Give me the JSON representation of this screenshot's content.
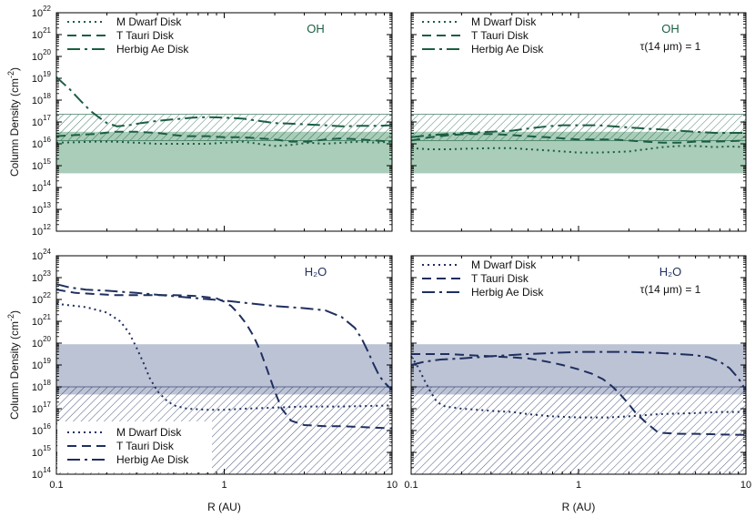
{
  "colors": {
    "oh": "#1b5e43",
    "oh_band": "#a9cdb8",
    "h2o": "#1f2f5f",
    "h2o_band": "#bcc3d5"
  },
  "chart_data": [
    {
      "type": "line",
      "panel": "top-left",
      "species": "OH",
      "note": "",
      "ylabel": "Column Density (cm",
      "ylabel_sup": "-2",
      "ylabel_close": ")",
      "xlabel": "",
      "xscale": "log",
      "yscale": "log",
      "xlim": [
        0.1,
        10
      ],
      "ylim": [
        12,
        22
      ],
      "x_ticks": [],
      "y_ticks": [
        12,
        13,
        14,
        15,
        16,
        17,
        18,
        19,
        20,
        21,
        22
      ],
      "legend_position": "top-left",
      "shaded_band": [
        14.65,
        16.55
      ],
      "hatched_band": [
        16.15,
        17.35
      ],
      "series": [
        {
          "name": "M Dwarf Disk",
          "style": "dot",
          "x": [
            0.1,
            0.13,
            0.17,
            0.22,
            0.3,
            0.4,
            0.5,
            0.6,
            0.8,
            1.0,
            1.3,
            1.6,
            2.0,
            2.5,
            3.2,
            4.0,
            5.0,
            6.5,
            8.0,
            10
          ],
          "y": [
            16.05,
            16.07,
            16.1,
            16.1,
            16.05,
            16.0,
            16.0,
            16.0,
            16.0,
            16.05,
            16.1,
            16.0,
            15.9,
            15.95,
            16.05,
            16.0,
            16.05,
            16.1,
            16.05,
            16.1
          ]
        },
        {
          "name": "T Tauri Disk",
          "style": "dash",
          "x": [
            0.1,
            0.13,
            0.17,
            0.22,
            0.3,
            0.4,
            0.5,
            0.6,
            0.8,
            1.0,
            1.3,
            1.6,
            2.0,
            2.5,
            3.2,
            4.0,
            5.0,
            6.5,
            8.0,
            10
          ],
          "y": [
            16.35,
            16.4,
            16.45,
            16.55,
            16.55,
            16.5,
            16.4,
            16.35,
            16.35,
            16.3,
            16.3,
            16.25,
            16.2,
            16.1,
            16.1,
            16.2,
            16.25,
            16.2,
            16.15,
            16.1
          ]
        },
        {
          "name": "Herbig Ae Disk",
          "style": "dashdot",
          "x": [
            0.1,
            0.12,
            0.14,
            0.16,
            0.18,
            0.2,
            0.23,
            0.27,
            0.32,
            0.4,
            0.5,
            0.65,
            0.8,
            1.0,
            1.3,
            1.6,
            2.0,
            2.5,
            3.2,
            4.0,
            5.0,
            6.5,
            8.0,
            10
          ],
          "y": [
            19.05,
            18.5,
            17.95,
            17.5,
            17.2,
            16.95,
            16.8,
            16.85,
            16.95,
            17.05,
            17.12,
            17.2,
            17.22,
            17.2,
            17.15,
            17.05,
            16.95,
            16.92,
            16.88,
            16.85,
            16.8,
            16.82,
            16.82,
            16.85
          ]
        }
      ]
    },
    {
      "type": "line",
      "panel": "top-right",
      "species": "OH",
      "note": "τ(14 μm) = 1",
      "ylabel": "",
      "ylabel_sup": "",
      "ylabel_close": "",
      "xlabel": "",
      "xscale": "log",
      "yscale": "log",
      "xlim": [
        0.1,
        10
      ],
      "ylim": [
        12,
        22
      ],
      "x_ticks": [],
      "y_ticks": [],
      "legend_position": "top-left",
      "shaded_band": [
        14.65,
        16.55
      ],
      "hatched_band": [
        16.15,
        17.35
      ],
      "series": [
        {
          "name": "M Dwarf Disk",
          "style": "dot",
          "x": [
            0.1,
            0.13,
            0.17,
            0.22,
            0.3,
            0.4,
            0.5,
            0.65,
            0.8,
            1.0,
            1.3,
            1.6,
            2.0,
            2.5,
            3.2,
            4.0,
            5.0,
            6.5,
            8.0,
            10
          ],
          "y": [
            15.8,
            15.75,
            15.75,
            15.78,
            15.8,
            15.8,
            15.75,
            15.7,
            15.65,
            15.6,
            15.6,
            15.62,
            15.65,
            15.75,
            15.85,
            15.9,
            15.9,
            15.85,
            15.88,
            15.85
          ]
        },
        {
          "name": "T Tauri Disk",
          "style": "dash",
          "x": [
            0.1,
            0.13,
            0.17,
            0.22,
            0.3,
            0.4,
            0.5,
            0.65,
            0.8,
            1.0,
            1.3,
            1.6,
            2.0,
            2.5,
            3.2,
            4.0,
            5.0,
            6.5,
            8.0,
            10
          ],
          "y": [
            16.15,
            16.3,
            16.4,
            16.45,
            16.45,
            16.4,
            16.35,
            16.3,
            16.25,
            16.2,
            16.2,
            16.2,
            16.15,
            16.1,
            16.05,
            16.05,
            16.1,
            16.1,
            16.12,
            16.15
          ]
        },
        {
          "name": "Herbig Ae Disk",
          "style": "dashdot",
          "x": [
            0.1,
            0.13,
            0.17,
            0.22,
            0.3,
            0.4,
            0.5,
            0.65,
            0.8,
            1.0,
            1.3,
            1.6,
            2.0,
            2.5,
            3.2,
            4.0,
            5.0,
            6.5,
            8.0,
            10
          ],
          "y": [
            16.3,
            16.4,
            16.45,
            16.5,
            16.55,
            16.6,
            16.7,
            16.8,
            16.85,
            16.85,
            16.85,
            16.8,
            16.75,
            16.7,
            16.65,
            16.6,
            16.55,
            16.5,
            16.5,
            16.5
          ]
        }
      ]
    },
    {
      "type": "line",
      "panel": "bottom-left",
      "species": "H₂O",
      "note": "",
      "ylabel": "Column Density (cm",
      "ylabel_sup": "-2",
      "ylabel_close": ")",
      "xlabel": "R (AU)",
      "xscale": "log",
      "yscale": "log",
      "xlim": [
        0.1,
        10
      ],
      "ylim": [
        14,
        24
      ],
      "x_ticks": [
        "0.1",
        "1",
        "10"
      ],
      "y_ticks": [
        14,
        15,
        16,
        17,
        18,
        19,
        20,
        21,
        22,
        23,
        24
      ],
      "legend_position": "bottom-left",
      "shaded_band": [
        17.65,
        19.95
      ],
      "hatched_band": [
        14,
        18.0
      ],
      "series": [
        {
          "name": "M Dwarf Disk",
          "style": "dot",
          "x": [
            0.1,
            0.15,
            0.2,
            0.24,
            0.27,
            0.3,
            0.33,
            0.36,
            0.4,
            0.45,
            0.5,
            0.6,
            0.8,
            1.0,
            1.3,
            1.6,
            2.0,
            3.0,
            5.0,
            7.0,
            10
          ],
          "y": [
            21.8,
            21.65,
            21.4,
            21.0,
            20.5,
            19.8,
            19.1,
            18.4,
            17.8,
            17.4,
            17.15,
            17.0,
            16.95,
            16.95,
            17.0,
            17.02,
            17.05,
            17.1,
            17.1,
            17.12,
            17.15
          ]
        },
        {
          "name": "T Tauri Disk",
          "style": "dash",
          "x": [
            0.1,
            0.13,
            0.17,
            0.22,
            0.3,
            0.4,
            0.5,
            0.6,
            0.7,
            0.8,
            0.9,
            1.0,
            1.1,
            1.2,
            1.35,
            1.5,
            1.65,
            1.8,
            2.0,
            2.2,
            2.5,
            3.0,
            4.0,
            5.0,
            7.0,
            10
          ],
          "y": [
            22.45,
            22.3,
            22.25,
            22.2,
            22.2,
            22.2,
            22.2,
            22.18,
            22.15,
            22.1,
            22.05,
            21.9,
            21.7,
            21.4,
            20.9,
            20.3,
            19.6,
            18.8,
            17.8,
            17.0,
            16.45,
            16.25,
            16.2,
            16.2,
            16.15,
            16.1
          ]
        },
        {
          "name": "Herbig Ae Disk",
          "style": "dashdot",
          "x": [
            0.1,
            0.12,
            0.15,
            0.2,
            0.3,
            0.5,
            0.7,
            1.0,
            1.5,
            2.0,
            3.0,
            4.0,
            5.0,
            6.0,
            6.6,
            7.2,
            7.8,
            8.4,
            9.0,
            10
          ],
          "y": [
            22.7,
            22.55,
            22.45,
            22.4,
            22.3,
            22.15,
            22.05,
            21.95,
            21.8,
            21.7,
            21.6,
            21.5,
            21.2,
            20.7,
            20.2,
            19.6,
            19.0,
            18.5,
            18.2,
            17.85
          ]
        }
      ]
    },
    {
      "type": "line",
      "panel": "bottom-right",
      "species": "H₂O",
      "note": "τ(14 μm) = 1",
      "ylabel": "",
      "ylabel_sup": "",
      "ylabel_close": "",
      "xlabel": "R (AU)",
      "xscale": "log",
      "yscale": "log",
      "xlim": [
        0.1,
        10
      ],
      "ylim": [
        14,
        24
      ],
      "x_ticks": [
        "0.1",
        "1",
        "10"
      ],
      "y_ticks": [],
      "legend_position": "top-left",
      "shaded_band": [
        17.65,
        19.95
      ],
      "hatched_band": [
        14,
        18.0
      ],
      "series": [
        {
          "name": "M Dwarf Disk",
          "style": "dot",
          "x": [
            0.1,
            0.11,
            0.12,
            0.13,
            0.14,
            0.15,
            0.16,
            0.18,
            0.2,
            0.25,
            0.3,
            0.4,
            0.5,
            0.7,
            1.0,
            1.5,
            2.0,
            3.0,
            5.0,
            7.0,
            10
          ],
          "y": [
            19.4,
            18.9,
            18.3,
            17.8,
            17.4,
            17.2,
            17.1,
            17.05,
            17.0,
            16.95,
            16.9,
            16.85,
            16.75,
            16.65,
            16.6,
            16.6,
            16.65,
            16.75,
            16.8,
            16.85,
            16.85
          ]
        },
        {
          "name": "T Tauri Disk",
          "style": "dash",
          "x": [
            0.1,
            0.13,
            0.17,
            0.22,
            0.3,
            0.4,
            0.5,
            0.6,
            0.7,
            0.8,
            1.0,
            1.2,
            1.4,
            1.6,
            1.8,
            2.0,
            2.2,
            2.5,
            3.0,
            4.0,
            5.0,
            7.0,
            10
          ],
          "y": [
            19.5,
            19.5,
            19.5,
            19.45,
            19.4,
            19.35,
            19.3,
            19.2,
            19.1,
            19.0,
            18.8,
            18.6,
            18.35,
            18.0,
            17.6,
            17.2,
            16.8,
            16.4,
            15.9,
            15.85,
            15.85,
            15.82,
            15.8
          ]
        },
        {
          "name": "Herbig Ae Disk",
          "style": "dashdot",
          "x": [
            0.1,
            0.12,
            0.15,
            0.2,
            0.3,
            0.5,
            0.7,
            1.0,
            1.5,
            2.0,
            3.0,
            4.0,
            5.0,
            6.0,
            7.0,
            8.0,
            9.0,
            10
          ],
          "y": [
            19.0,
            19.15,
            19.25,
            19.3,
            19.4,
            19.5,
            19.55,
            19.6,
            19.6,
            19.6,
            19.55,
            19.5,
            19.45,
            19.35,
            19.15,
            18.85,
            18.4,
            17.85
          ]
        }
      ]
    }
  ]
}
